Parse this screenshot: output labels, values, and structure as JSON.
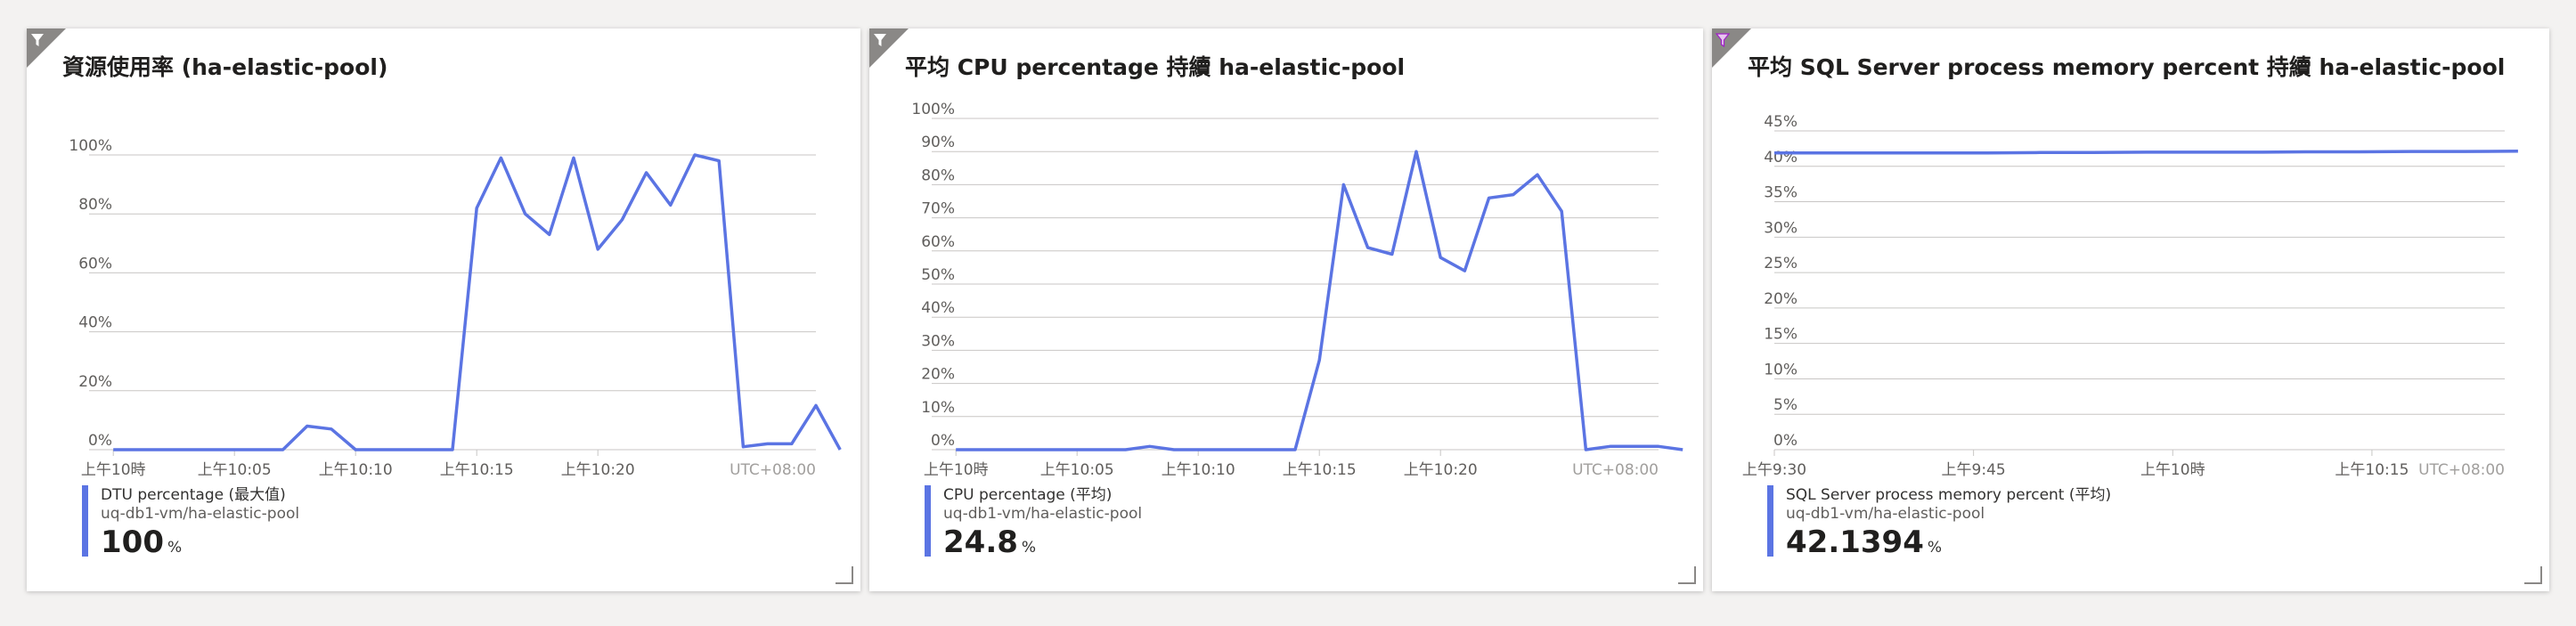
{
  "colors": {
    "series": "#5b74e3",
    "grid": "#c8c6c4",
    "filter_badge": "#8a8886",
    "filter_icon_accent": "#a020c8"
  },
  "tiles": [
    {
      "title": "資源使用率 (ha-elastic-pool)",
      "legend": {
        "metric": "DTU percentage (最大值)",
        "resource": "uq-db1-vm/ha-elastic-pool",
        "value": "100",
        "unit": "%"
      },
      "timezone": "UTC+08:00",
      "filter_icon": "funnel-icon"
    },
    {
      "title": "平均 CPU percentage 持續 ha-elastic-pool",
      "legend": {
        "metric": "CPU percentage (平均)",
        "resource": "uq-db1-vm/ha-elastic-pool",
        "value": "24.8",
        "unit": "%"
      },
      "timezone": "UTC+08:00",
      "filter_icon": "funnel-icon"
    },
    {
      "title": "平均 SQL Server process memory percent 持續 ha-elastic-pool",
      "legend": {
        "metric": "SQL Server process memory percent (平均)",
        "resource": "uq-db1-vm/ha-elastic-pool",
        "value": "42.1394",
        "unit": "%"
      },
      "timezone": "UTC+08:00",
      "filter_icon": "funnel-icon"
    }
  ],
  "chart_data": [
    {
      "type": "line",
      "title": "資源使用率 (ha-elastic-pool)",
      "ylim": [
        0,
        100
      ],
      "yticks": [
        "0%",
        "20%",
        "40%",
        "60%",
        "80%",
        "100%"
      ],
      "xlim": [
        0,
        30
      ],
      "xticks": [
        {
          "label": "上午10時",
          "x": 1
        },
        {
          "label": "上午10:05",
          "x": 6
        },
        {
          "label": "上午10:10",
          "x": 11
        },
        {
          "label": "上午10:15",
          "x": 16
        },
        {
          "label": "上午10:20",
          "x": 21
        }
      ],
      "grid": true,
      "series": [
        {
          "values": [
            0,
            0,
            0,
            0,
            0,
            0,
            0,
            0,
            8,
            7,
            0,
            0,
            0,
            0,
            0,
            82,
            99,
            80,
            73,
            99,
            68,
            78,
            94,
            83,
            100,
            98,
            1,
            2,
            2,
            15,
            0
          ],
          "x_start": 1
        }
      ]
    },
    {
      "type": "line",
      "title": "平均 CPU percentage 持續 ha-elastic-pool",
      "ylim": [
        0,
        100
      ],
      "yticks": [
        "0%",
        "10%",
        "20%",
        "30%",
        "40%",
        "50%",
        "60%",
        "70%",
        "80%",
        "90%",
        "100%"
      ],
      "xlim": [
        0,
        30
      ],
      "xticks": [
        {
          "label": "上午10時",
          "x": 1
        },
        {
          "label": "上午10:05",
          "x": 6
        },
        {
          "label": "上午10:10",
          "x": 11
        },
        {
          "label": "上午10:15",
          "x": 16
        },
        {
          "label": "上午10:20",
          "x": 21
        }
      ],
      "grid": true,
      "series": [
        {
          "values": [
            0,
            0,
            0,
            0,
            0,
            0,
            0,
            0,
            1,
            0,
            0,
            0,
            0,
            0,
            0,
            27,
            80,
            61,
            59,
            90,
            58,
            54,
            76,
            77,
            83,
            72,
            0,
            1,
            1,
            1,
            0
          ],
          "x_start": 1
        }
      ]
    },
    {
      "type": "line",
      "title": "平均 SQL Server process memory percent 持續 ha-elastic-pool",
      "ylim": [
        0,
        45
      ],
      "yticks": [
        "0%",
        "5%",
        "10%",
        "15%",
        "20%",
        "25%",
        "30%",
        "35%",
        "40%",
        "45%"
      ],
      "xlim": [
        0,
        55
      ],
      "xticks": [
        {
          "label": "上午9:30",
          "x": 0
        },
        {
          "label": "上午9:45",
          "x": 15
        },
        {
          "label": "上午10時",
          "x": 30
        },
        {
          "label": "上午10:15",
          "x": 45
        }
      ],
      "grid": true,
      "series": [
        {
          "values": [
            41.9,
            41.9,
            41.9,
            41.9,
            41.9,
            41.95,
            41.95,
            42.0,
            42.0,
            42.0,
            42.05,
            42.05,
            42.1,
            42.1,
            42.14
          ],
          "x_start": 0,
          "x_step": 4
        }
      ]
    }
  ]
}
